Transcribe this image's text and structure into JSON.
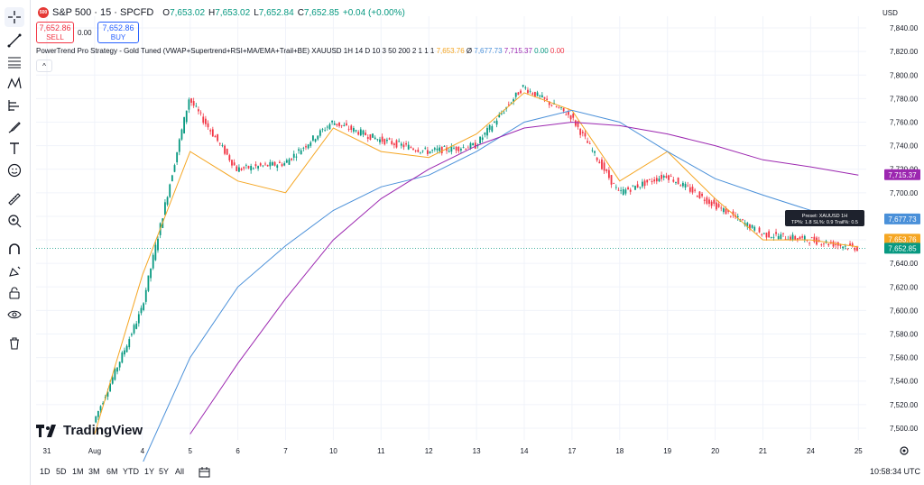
{
  "symbol": {
    "badge": "500",
    "title": "S&P 500 · 15 · SPCFD",
    "ohlc": [
      {
        "label": "O",
        "value": "7,653.02"
      },
      {
        "label": "H",
        "value": "7,653.02"
      },
      {
        "label": "L",
        "value": "7,652.84"
      },
      {
        "label": "C",
        "value": "7,652.85"
      }
    ],
    "change": "+0.04 (+0.00%)"
  },
  "trade": {
    "sell_price": "7,652.86",
    "sell_label": "SELL",
    "spread": "0.00",
    "buy_price": "7,652.86",
    "buy_label": "BUY"
  },
  "indicator": {
    "name": "PowerTrend Pro Strategy - Gold Tuned (VWAP+Supertrend+RSI+MA/EMA+Trail+BE) XAUUSD 1H 14 D 10 3 50 200 2 1 1 1",
    "values": [
      {
        "text": "7,653.76",
        "color": "#f5a623"
      },
      {
        "text": "Ø",
        "color": "#131722"
      },
      {
        "text": "7,677.73",
        "color": "#4a90d9"
      },
      {
        "text": "7,715.37",
        "color": "#9c27b0"
      },
      {
        "text": "0.00",
        "color": "#089981"
      },
      {
        "text": "0.00",
        "color": "#f23645"
      }
    ]
  },
  "currency": "USD",
  "price_axis": [
    "7,840.00",
    "7,820.00",
    "7,800.00",
    "7,780.00",
    "7,760.00",
    "7,740.00",
    "7,720.00",
    "7,700.00",
    "7,680.00",
    "7,660.00",
    "7,640.00",
    "7,620.00",
    "7,600.00",
    "7,580.00",
    "7,560.00",
    "7,540.00",
    "7,520.00",
    "7,500.00"
  ],
  "price_tags": [
    {
      "text": "7,715.37",
      "color": "#9c27b0",
      "price": 7715.37
    },
    {
      "text": "7,677.73",
      "color": "#4a90d9",
      "price": 7677.73
    },
    {
      "text": "7,653.76",
      "color": "#f5a623",
      "price": 7660.5
    },
    {
      "text": "7,652.85",
      "color": "#089981",
      "price": 7652.85
    }
  ],
  "time_axis": [
    "31",
    "Aug",
    "4",
    "5",
    "6",
    "7",
    "10",
    "11",
    "12",
    "13",
    "14",
    "17",
    "18",
    "19",
    "20",
    "21",
    "24",
    "25"
  ],
  "tooltip": {
    "line1": "Preset: XAUUSD 1H",
    "line2": "TP%: 1.8  SL%: 0.9  Trail%: 0.5"
  },
  "logo": "TradingView",
  "ranges": [
    "1D",
    "5D",
    "1M",
    "3M",
    "6M",
    "YTD",
    "1Y",
    "5Y",
    "All"
  ],
  "clock": "10:58:34 UTC",
  "colors": {
    "up": "#089981",
    "down": "#f23645",
    "st": "#f5a623",
    "ma50": "#4a90d9",
    "ma200": "#9c27b0"
  },
  "chart_data": {
    "type": "line",
    "x": [
      "31",
      "Aug",
      "4",
      "5",
      "6",
      "7",
      "10",
      "11",
      "12",
      "13",
      "14",
      "17",
      "18",
      "19",
      "20",
      "21",
      "24",
      "25"
    ],
    "ylim": [
      7490,
      7850
    ],
    "series": [
      {
        "values": [
          null,
          7505,
          7600,
          7780,
          7720,
          7725,
          7760,
          7745,
          7735,
          7740,
          7790,
          7765,
          7700,
          7715,
          7690,
          7665,
          7660,
          7653
        ]
      },
      {
        "values": [
          null,
          7495,
          7630,
          7735,
          7710,
          7700,
          7755,
          7735,
          7730,
          7750,
          7785,
          7770,
          7710,
          7735,
          7695,
          7660,
          7660,
          7654
        ]
      },
      {
        "values": [
          null,
          null,
          7470,
          7560,
          7620,
          7655,
          7685,
          7705,
          7715,
          7735,
          7760,
          7770,
          7760,
          7735,
          7712,
          7698,
          7685,
          7678
        ]
      },
      {
        "values": [
          null,
          null,
          null,
          7495,
          7555,
          7610,
          7660,
          7695,
          7720,
          7740,
          7755,
          7760,
          7757,
          7750,
          7740,
          7728,
          7722,
          7715
        ]
      }
    ]
  }
}
